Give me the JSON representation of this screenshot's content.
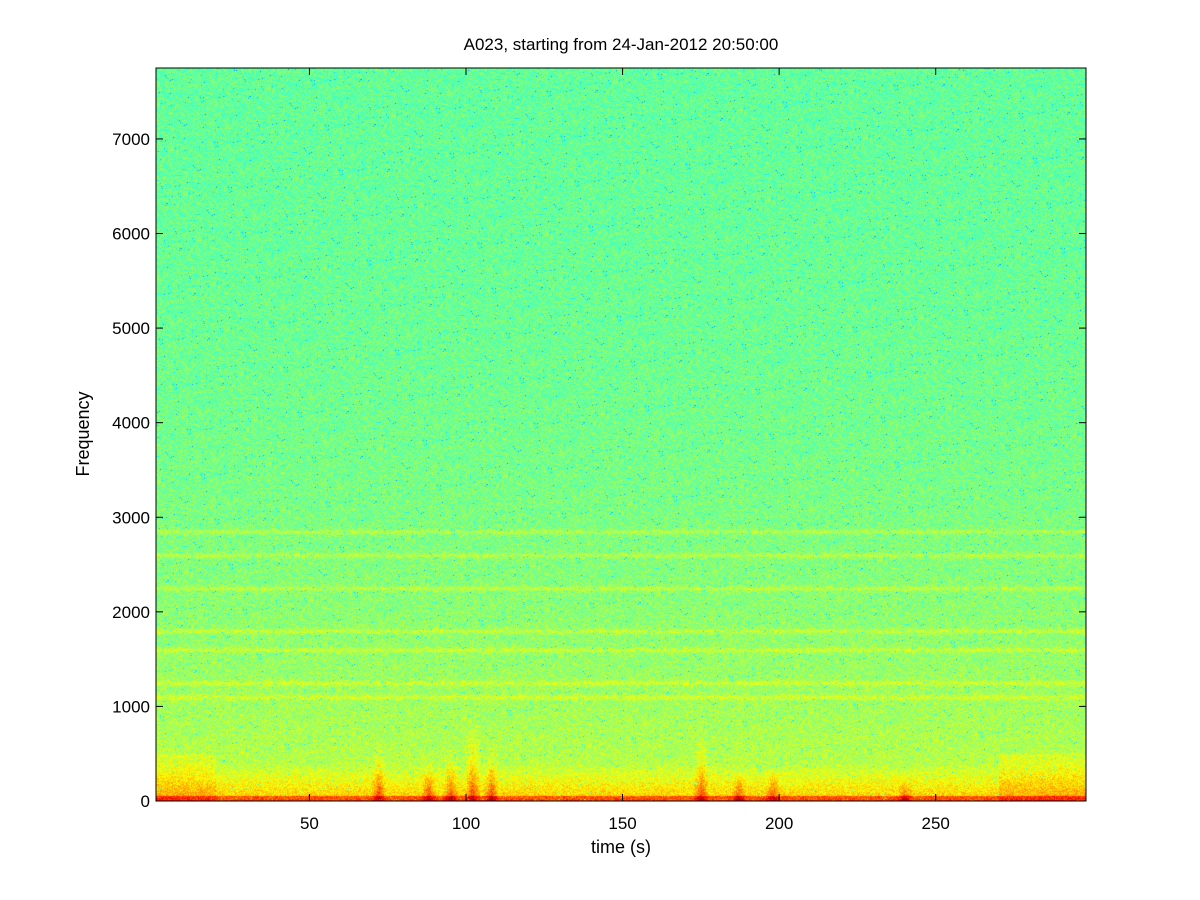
{
  "chart_data": {
    "type": "heatmap",
    "title": "A023, starting from 24-Jan-2012 20:50:00",
    "xlabel": "time (s)",
    "ylabel": "Frequency",
    "xlim": [
      1,
      298
    ],
    "ylim": [
      0,
      7750
    ],
    "x_ticks": [
      50,
      100,
      150,
      200,
      250
    ],
    "y_ticks": [
      0,
      1000,
      2000,
      3000,
      4000,
      5000,
      6000,
      7000
    ],
    "colormap": "jet",
    "grid": false,
    "background_level": "cyan-green (low power) across most frequencies above ~1000",
    "low_band": {
      "freq_max": 400,
      "level": "yellow",
      "bottom_edge_level": "red"
    },
    "harmonic_bands": [
      1100,
      1250,
      1600,
      1800,
      2250,
      2600,
      2850
    ],
    "transients": [
      {
        "time": 72,
        "freq_top": 650
      },
      {
        "time": 88,
        "freq_top": 450
      },
      {
        "time": 95,
        "freq_top": 550
      },
      {
        "time": 102,
        "freq_top": 900
      },
      {
        "time": 108,
        "freq_top": 600
      },
      {
        "time": 175,
        "freq_top": 700
      },
      {
        "time": 187,
        "freq_top": 350
      },
      {
        "time": 198,
        "freq_top": 350
      },
      {
        "time": 240,
        "freq_top": 250
      }
    ],
    "colors": {
      "background": "#40ffbf",
      "mid": "#bfff40",
      "high": "#ffff00",
      "peak": "#ff2000",
      "frame": "#000000"
    }
  }
}
